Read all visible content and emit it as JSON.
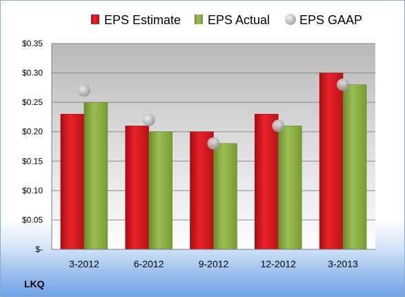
{
  "chart_data": {
    "type": "bar",
    "categories": [
      "3-2012",
      "6-2012",
      "9-2012",
      "12-2012",
      "3-2013"
    ],
    "series": [
      {
        "name": "EPS Estimate",
        "kind": "bar",
        "color": "#d9141b",
        "values": [
          0.23,
          0.21,
          0.2,
          0.23,
          0.3
        ]
      },
      {
        "name": "EPS Actual",
        "kind": "bar",
        "color": "#88ac3b",
        "values": [
          0.25,
          0.2,
          0.18,
          0.21,
          0.28
        ]
      },
      {
        "name": "EPS GAAP",
        "kind": "marker",
        "color": "#b8b8b8",
        "values": [
          0.27,
          0.22,
          0.18,
          0.21,
          0.28
        ]
      }
    ],
    "ylim": [
      0,
      0.35
    ],
    "yticks": [
      0,
      0.05,
      0.1,
      0.15,
      0.2,
      0.25,
      0.3,
      0.35
    ],
    "ytick_labels": [
      "$-",
      "$0.05",
      "$0.10",
      "$0.15",
      "$0.20",
      "$0.25",
      "$0.30",
      "$0.35"
    ],
    "grid": true,
    "legend_position": "top",
    "title": "",
    "xlabel": "",
    "ylabel": ""
  },
  "footer": {
    "ticker": "LKQ"
  }
}
